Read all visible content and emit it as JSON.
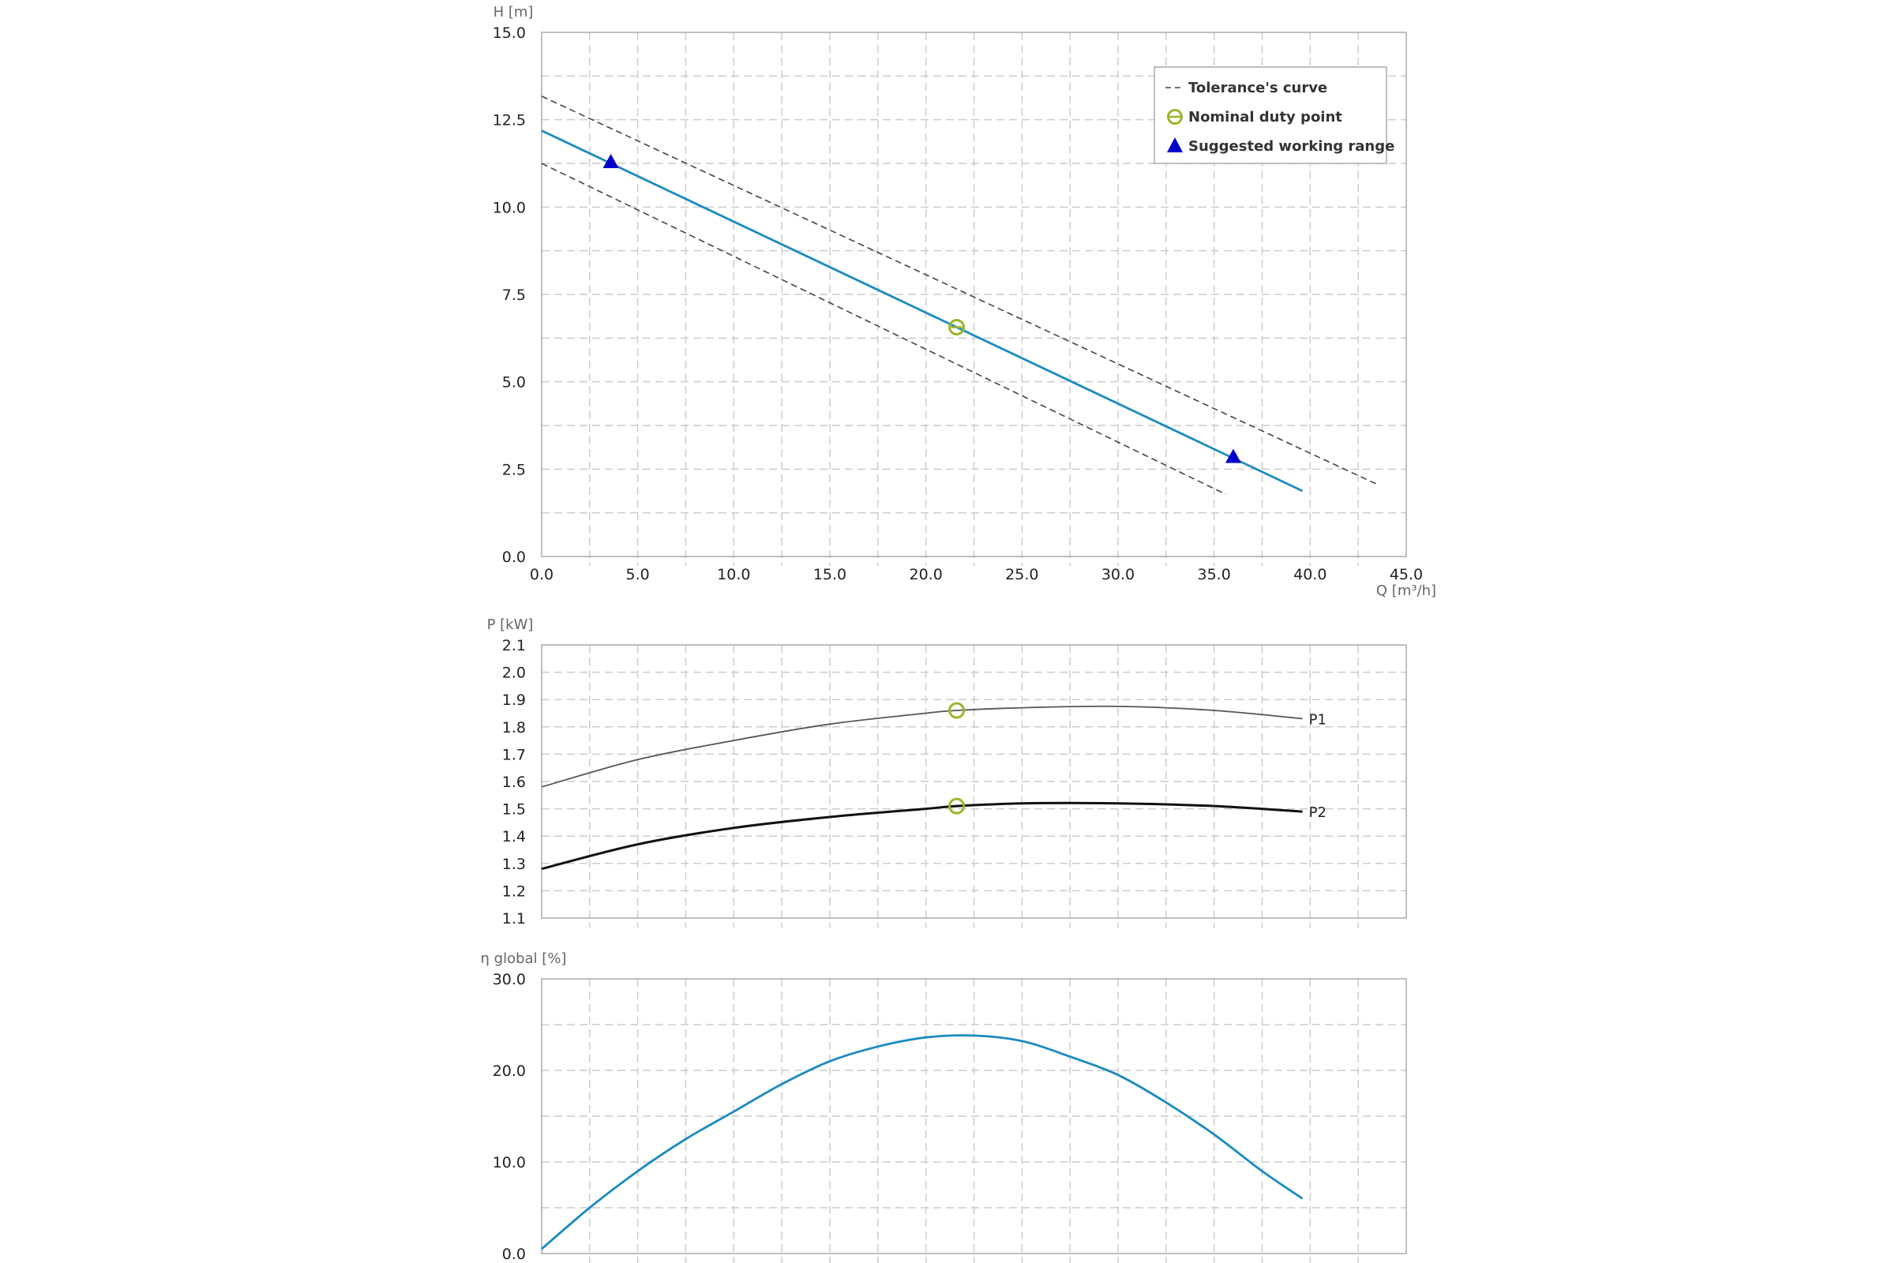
{
  "colors": {
    "pump_curve": "#1a8bc0",
    "tolerance": "#444444",
    "duty_point": "#9ab52a",
    "working_range": "#0000cc",
    "p1": "#555555",
    "p2": "#111111",
    "efficiency": "#1a8bc0",
    "grid": "#cccccc",
    "frame": "#aaaaaa"
  },
  "legend": {
    "tolerance": "Tolerance's curve",
    "duty": "Nominal duty point",
    "range": "Suggested working range"
  },
  "chart_data": [
    {
      "type": "line",
      "id": "head",
      "ylabel": "H [m]",
      "xlabel": "Q [m³/h]",
      "xlim": [
        0,
        45
      ],
      "ylim": [
        0,
        16
      ],
      "x_ticks": [
        "0.0",
        "5.0",
        "10.0",
        "15.0",
        "20.0",
        "25.0",
        "30.0",
        "35.0",
        "40.0",
        "45.0"
      ],
      "y_ticks": [
        "0.0",
        "2.5",
        "5.0",
        "7.5",
        "10.0",
        "12.5",
        "15.0"
      ],
      "grid": true,
      "legend_position": "top-right",
      "series": [
        {
          "name": "Tolerance's curve",
          "style": "dashed",
          "x": [
            0,
            43.5
          ],
          "y": [
            14.05,
            2.2
          ]
        },
        {
          "name": "Tolerance's curve",
          "style": "dashed",
          "x": [
            0,
            35.6
          ],
          "y": [
            12.0,
            1.9
          ]
        },
        {
          "style": "solid",
          "x": [
            0,
            39.6
          ],
          "y": [
            13.0,
            2.0
          ]
        }
      ],
      "duty_point": {
        "x": 21.6,
        "y": 7.0
      },
      "working_range": [
        {
          "x": 3.6,
          "y": 12.0
        },
        {
          "x": 36.0,
          "y": 3.0
        }
      ]
    },
    {
      "type": "line",
      "id": "power",
      "ylabel": "P [kW]",
      "xlim": [
        0,
        45
      ],
      "ylim": [
        1.1,
        2.1
      ],
      "y_ticks": [
        "1.1",
        "1.2",
        "1.3",
        "1.4",
        "1.5",
        "1.6",
        "1.7",
        "1.8",
        "1.9",
        "2.0",
        "2.1"
      ],
      "grid": true,
      "series": [
        {
          "name": "P1",
          "x": [
            0,
            5,
            10,
            15,
            20,
            21.6,
            25,
            30,
            35,
            39.6
          ],
          "y": [
            1.58,
            1.68,
            1.75,
            1.81,
            1.85,
            1.86,
            1.87,
            1.875,
            1.86,
            1.83
          ]
        },
        {
          "name": "P2",
          "x": [
            0,
            5,
            10,
            15,
            20,
            21.6,
            25,
            30,
            35,
            39.6
          ],
          "y": [
            1.28,
            1.37,
            1.43,
            1.47,
            1.5,
            1.51,
            1.52,
            1.52,
            1.51,
            1.49
          ]
        }
      ],
      "duty_points": [
        {
          "x": 21.6,
          "y": 1.86
        },
        {
          "x": 21.6,
          "y": 1.51
        }
      ]
    },
    {
      "type": "line",
      "id": "efficiency",
      "ylabel": "η global [%]",
      "xlim": [
        0,
        45
      ],
      "ylim": [
        0,
        30
      ],
      "y_ticks": [
        "0.0",
        "10.0",
        "20.0",
        "30.0"
      ],
      "grid": true,
      "series": [
        {
          "x": [
            0,
            2.5,
            5,
            7.5,
            10,
            12.5,
            15,
            17.5,
            20,
            22.5,
            25,
            27.5,
            30,
            32.5,
            35,
            37.5,
            39.6
          ],
          "y": [
            0.5,
            5,
            9,
            12.5,
            15.5,
            18.5,
            21,
            22.6,
            23.6,
            23.8,
            23.2,
            21.5,
            19.5,
            16.5,
            13,
            9,
            6.0
          ]
        }
      ]
    }
  ]
}
